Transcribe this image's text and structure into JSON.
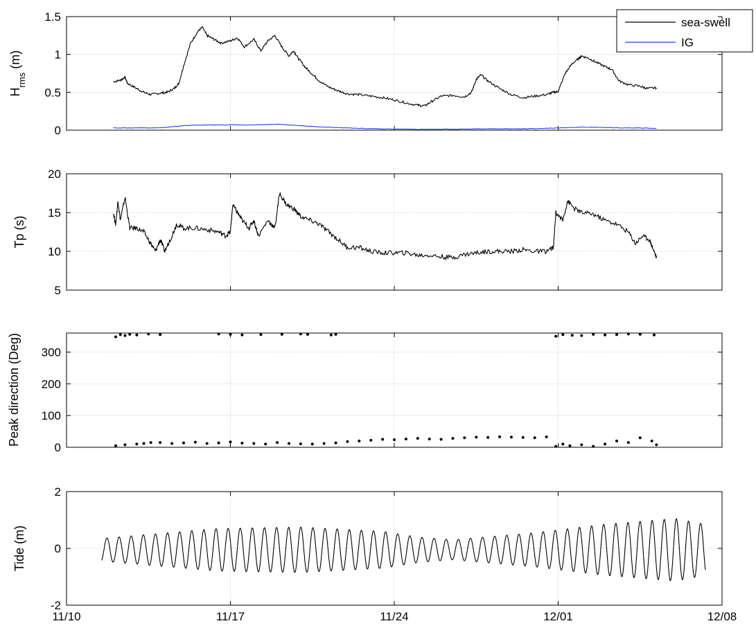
{
  "chart_data": [
    {
      "type": "line",
      "ylabel": "H",
      "ylabel_sub": "rms",
      "ylabel_suffix": " (m)",
      "xlim": [
        "11/10",
        "12/08"
      ],
      "ylim": [
        0,
        1.5
      ],
      "yticks": [
        "0",
        "0.5",
        "1",
        "1.5"
      ],
      "grid": true,
      "legend": "top-right",
      "series": [
        {
          "name": "sea-swell",
          "color": "#000000",
          "points": [
            [
              2.0,
              0.64
            ],
            [
              2.3,
              0.66
            ],
            [
              2.5,
              0.7
            ],
            [
              2.6,
              0.62
            ],
            [
              3.0,
              0.55
            ],
            [
              3.3,
              0.5
            ],
            [
              3.6,
              0.47
            ],
            [
              4.0,
              0.49
            ],
            [
              4.3,
              0.5
            ],
            [
              4.6,
              0.55
            ],
            [
              4.8,
              0.62
            ],
            [
              5.0,
              0.85
            ],
            [
              5.3,
              1.15
            ],
            [
              5.6,
              1.3
            ],
            [
              5.8,
              1.36
            ],
            [
              6.0,
              1.25
            ],
            [
              6.3,
              1.2
            ],
            [
              6.6,
              1.15
            ],
            [
              7.0,
              1.18
            ],
            [
              7.3,
              1.22
            ],
            [
              7.6,
              1.1
            ],
            [
              8.0,
              1.2
            ],
            [
              8.3,
              1.05
            ],
            [
              8.6,
              1.18
            ],
            [
              8.9,
              1.25
            ],
            [
              9.2,
              1.1
            ],
            [
              9.5,
              0.98
            ],
            [
              9.7,
              1.05
            ],
            [
              9.9,
              0.95
            ],
            [
              10.2,
              0.83
            ],
            [
              10.5,
              0.74
            ],
            [
              10.8,
              0.65
            ],
            [
              11.2,
              0.57
            ],
            [
              11.6,
              0.52
            ],
            [
              12.0,
              0.48
            ],
            [
              12.5,
              0.47
            ],
            [
              13.0,
              0.45
            ],
            [
              13.5,
              0.43
            ],
            [
              14.0,
              0.4
            ],
            [
              14.5,
              0.36
            ],
            [
              15.0,
              0.33
            ],
            [
              15.3,
              0.32
            ],
            [
              15.6,
              0.38
            ],
            [
              16.0,
              0.45
            ],
            [
              16.5,
              0.46
            ],
            [
              17.0,
              0.44
            ],
            [
              17.3,
              0.5
            ],
            [
              17.5,
              0.67
            ],
            [
              17.7,
              0.73
            ],
            [
              18.0,
              0.65
            ],
            [
              18.5,
              0.55
            ],
            [
              19.0,
              0.47
            ],
            [
              19.5,
              0.43
            ],
            [
              20.0,
              0.45
            ],
            [
              20.5,
              0.47
            ],
            [
              20.8,
              0.5
            ],
            [
              21.0,
              0.51
            ],
            [
              21.3,
              0.75
            ],
            [
              21.6,
              0.88
            ],
            [
              21.9,
              0.95
            ],
            [
              22.0,
              0.98
            ],
            [
              22.3,
              0.95
            ],
            [
              22.6,
              0.9
            ],
            [
              23.0,
              0.84
            ],
            [
              23.3,
              0.8
            ],
            [
              23.6,
              0.65
            ],
            [
              24.0,
              0.6
            ],
            [
              24.5,
              0.58
            ],
            [
              24.8,
              0.55
            ],
            [
              25.2,
              0.56
            ]
          ]
        },
        {
          "name": "IG",
          "color": "#1f3fff",
          "points": [
            [
              2.0,
              0.03
            ],
            [
              3.0,
              0.03
            ],
            [
              4.0,
              0.03
            ],
            [
              5.0,
              0.06
            ],
            [
              6.0,
              0.07
            ],
            [
              7.0,
              0.07
            ],
            [
              8.0,
              0.07
            ],
            [
              9.0,
              0.08
            ],
            [
              10.0,
              0.06
            ],
            [
              11.0,
              0.04
            ],
            [
              12.0,
              0.03
            ],
            [
              13.0,
              0.02
            ],
            [
              14.0,
              0.015
            ],
            [
              15.0,
              0.012
            ],
            [
              16.0,
              0.012
            ],
            [
              17.0,
              0.015
            ],
            [
              18.0,
              0.02
            ],
            [
              19.0,
              0.018
            ],
            [
              20.0,
              0.02
            ],
            [
              21.0,
              0.03
            ],
            [
              22.0,
              0.04
            ],
            [
              23.0,
              0.035
            ],
            [
              24.0,
              0.03
            ],
            [
              25.2,
              0.025
            ]
          ]
        }
      ]
    },
    {
      "type": "line",
      "ylabel": "Tp (s)",
      "xlim": [
        "11/10",
        "12/08"
      ],
      "ylim": [
        5,
        20
      ],
      "yticks": [
        "5",
        "10",
        "15",
        "20"
      ],
      "grid": true,
      "series": [
        {
          "color": "#000000",
          "points": [
            [
              2.0,
              15
            ],
            [
              2.1,
              13.5
            ],
            [
              2.2,
              16.5
            ],
            [
              2.3,
              14
            ],
            [
              2.5,
              17
            ],
            [
              2.7,
              13
            ],
            [
              3.0,
              13
            ],
            [
              3.3,
              12.5
            ],
            [
              3.6,
              11
            ],
            [
              3.8,
              10
            ],
            [
              4.0,
              11.5
            ],
            [
              4.2,
              10
            ],
            [
              4.5,
              12
            ],
            [
              4.7,
              13.5
            ],
            [
              5.0,
              13
            ],
            [
              5.5,
              13
            ],
            [
              6.0,
              12.8
            ],
            [
              6.5,
              12.5
            ],
            [
              6.8,
              12
            ],
            [
              7.0,
              12.5
            ],
            [
              7.1,
              16
            ],
            [
              7.3,
              15
            ],
            [
              7.5,
              14
            ],
            [
              7.8,
              13
            ],
            [
              8.0,
              14
            ],
            [
              8.2,
              12
            ],
            [
              8.6,
              14
            ],
            [
              8.9,
              13
            ],
            [
              9.1,
              17.5
            ],
            [
              9.4,
              16
            ],
            [
              9.7,
              15.5
            ],
            [
              10.0,
              14.5
            ],
            [
              10.4,
              14
            ],
            [
              10.8,
              13.5
            ],
            [
              11.2,
              12.5
            ],
            [
              11.6,
              11.5
            ],
            [
              12.0,
              10.5
            ],
            [
              12.5,
              10.5
            ],
            [
              13.0,
              10
            ],
            [
              13.5,
              9.8
            ],
            [
              14.0,
              9.8
            ],
            [
              14.5,
              9.8
            ],
            [
              15.0,
              9.5
            ],
            [
              15.5,
              9.5
            ],
            [
              16.0,
              9.3
            ],
            [
              16.5,
              9.2
            ],
            [
              17.0,
              9.6
            ],
            [
              17.5,
              9.8
            ],
            [
              18.0,
              10
            ],
            [
              18.5,
              10
            ],
            [
              19.0,
              10
            ],
            [
              19.5,
              10.2
            ],
            [
              20.0,
              10
            ],
            [
              20.5,
              10
            ],
            [
              20.8,
              10.5
            ],
            [
              20.9,
              15
            ],
            [
              21.2,
              14
            ],
            [
              21.4,
              16.5
            ],
            [
              21.7,
              15.5
            ],
            [
              22.0,
              15
            ],
            [
              22.5,
              14.8
            ],
            [
              23.0,
              14
            ],
            [
              23.5,
              13.5
            ],
            [
              24.0,
              12.5
            ],
            [
              24.3,
              11
            ],
            [
              24.6,
              12
            ],
            [
              24.9,
              11.5
            ],
            [
              25.1,
              10
            ],
            [
              25.2,
              9.2
            ]
          ]
        }
      ]
    },
    {
      "type": "scatter",
      "ylabel": "Peak direction (Deg)",
      "xlim": [
        "11/10",
        "12/08"
      ],
      "ylim": [
        0,
        360
      ],
      "yticks": [
        "0",
        "100",
        "200",
        "300"
      ],
      "grid": true,
      "series": [
        {
          "color": "#000000",
          "points": [
            [
              2.1,
              348
            ],
            [
              2.3,
              355
            ],
            [
              2.5,
              352
            ],
            [
              2.7,
              356
            ],
            [
              3.0,
              354
            ],
            [
              3.5,
              357
            ],
            [
              4.0,
              355
            ],
            [
              6.5,
              357
            ],
            [
              7.0,
              356
            ],
            [
              7.5,
              354
            ],
            [
              8.3,
              355
            ],
            [
              9.2,
              356
            ],
            [
              10.0,
              357
            ],
            [
              10.3,
              356
            ],
            [
              11.3,
              354
            ],
            [
              11.5,
              356
            ],
            [
              20.9,
              350
            ],
            [
              21.2,
              355
            ],
            [
              21.6,
              353
            ],
            [
              22.0,
              352
            ],
            [
              22.5,
              356
            ],
            [
              23.0,
              354
            ],
            [
              23.5,
              355
            ],
            [
              24.0,
              357
            ],
            [
              24.5,
              356
            ],
            [
              25.1,
              354
            ],
            [
              2.1,
              5
            ],
            [
              2.5,
              8
            ],
            [
              3.0,
              10
            ],
            [
              3.3,
              12
            ],
            [
              3.6,
              15
            ],
            [
              4.0,
              15
            ],
            [
              4.5,
              12
            ],
            [
              5.0,
              14
            ],
            [
              5.5,
              16
            ],
            [
              6.0,
              12
            ],
            [
              6.5,
              14
            ],
            [
              7.0,
              17
            ],
            [
              7.5,
              13
            ],
            [
              8.0,
              12
            ],
            [
              8.5,
              10
            ],
            [
              9.0,
              15
            ],
            [
              9.5,
              12
            ],
            [
              10.0,
              11
            ],
            [
              10.5,
              10
            ],
            [
              11.0,
              12
            ],
            [
              11.5,
              14
            ],
            [
              12.0,
              18
            ],
            [
              12.5,
              20
            ],
            [
              13.0,
              22
            ],
            [
              13.5,
              25
            ],
            [
              14.0,
              24
            ],
            [
              14.5,
              26
            ],
            [
              15.0,
              28
            ],
            [
              15.5,
              26
            ],
            [
              16.0,
              25
            ],
            [
              16.5,
              28
            ],
            [
              17.0,
              30
            ],
            [
              17.5,
              32
            ],
            [
              18.0,
              31
            ],
            [
              18.5,
              33
            ],
            [
              19.0,
              32
            ],
            [
              19.5,
              31
            ],
            [
              20.0,
              30
            ],
            [
              20.5,
              33
            ],
            [
              20.9,
              3
            ],
            [
              21.2,
              10
            ],
            [
              21.5,
              5
            ],
            [
              22.0,
              8
            ],
            [
              22.5,
              3
            ],
            [
              23.0,
              10
            ],
            [
              23.5,
              20
            ],
            [
              24.0,
              15
            ],
            [
              24.5,
              30
            ],
            [
              25.0,
              20
            ],
            [
              25.2,
              8
            ]
          ]
        }
      ]
    },
    {
      "type": "line",
      "ylabel": "Tide (m)",
      "xlim": [
        "11/10",
        "12/08"
      ],
      "ylim": [
        -2,
        2
      ],
      "yticks": [
        "-2",
        "0",
        "2"
      ],
      "xticks": [
        "11/10",
        "11/17",
        "11/24",
        "12/01",
        "12/08"
      ],
      "grid": true,
      "tide_model": {
        "start_day": 1.5,
        "end_day": 27.3,
        "period_days": 0.5175,
        "amplitude_envelope": [
          [
            1.5,
            0.4
          ],
          [
            6.5,
            0.75
          ],
          [
            10.0,
            0.8
          ],
          [
            13.5,
            0.65
          ],
          [
            15.0,
            0.45
          ],
          [
            16.5,
            0.35
          ],
          [
            20.0,
            0.6
          ],
          [
            23.0,
            0.9
          ],
          [
            26.0,
            1.1
          ],
          [
            27.3,
            0.9
          ]
        ]
      }
    }
  ]
}
